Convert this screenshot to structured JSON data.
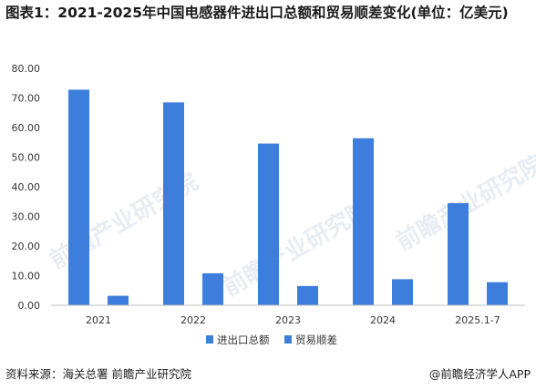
{
  "title": "图表1：2021-2025年中国电感器件进出口总额和贸易顺差变化(单位：亿美元)",
  "watermark": "前瞻产业研究院",
  "source": "资料来源：海关总署 前瞻产业研究院",
  "credit": "@前瞻经济学人APP",
  "colors": {
    "bar": "#3d7edc",
    "axis": "#bfbfbf"
  },
  "chart_data": {
    "type": "bar",
    "categories": [
      "2021",
      "2022",
      "2023",
      "2024",
      "2025.1-7"
    ],
    "series": [
      {
        "name": "进出口总额",
        "values": [
          72.8,
          68.5,
          54.6,
          56.4,
          34.5
        ]
      },
      {
        "name": "贸易顺差",
        "values": [
          3.2,
          10.8,
          6.5,
          8.8,
          7.8
        ]
      }
    ],
    "y_ticks": [
      "0.00",
      "10.00",
      "20.00",
      "30.00",
      "40.00",
      "50.00",
      "60.00",
      "70.00",
      "80.00"
    ],
    "ylim": [
      0,
      80
    ],
    "legend_position": "bottom",
    "grid": false
  }
}
